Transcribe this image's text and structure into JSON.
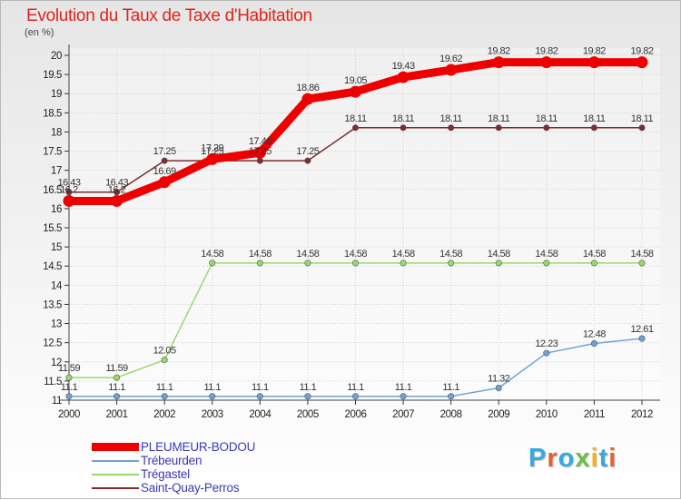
{
  "chart_data": {
    "type": "line",
    "title": "Evolution du Taux de Taxe d'Habitation",
    "ylabel": "(en %)",
    "xlabel": "",
    "x": [
      "2000",
      "2001",
      "2002",
      "2003",
      "2004",
      "2005",
      "2006",
      "2007",
      "2008",
      "2009",
      "2010",
      "2011",
      "2012"
    ],
    "ylim": [
      11,
      20
    ],
    "yticks": [
      "11",
      "11.5",
      "12",
      "12.5",
      "13",
      "13.5",
      "14",
      "14.5",
      "15",
      "15.5",
      "16",
      "16.5",
      "17",
      "17.5",
      "18",
      "18.5",
      "19",
      "19.5",
      "20"
    ],
    "grid": true,
    "legend_position": "bottom-left",
    "series": [
      {
        "name": "PLEUMEUR-BODOU",
        "color": "#ee0000",
        "values": [
          16.2,
          16.2,
          16.69,
          17.29,
          17.46,
          18.86,
          19.05,
          19.43,
          19.62,
          19.82,
          19.82,
          19.82,
          19.82
        ],
        "labels": [
          "16.2",
          "16.2",
          "16.69",
          "17.29",
          "17.46",
          "18.86",
          "19.05",
          "19.43",
          "19.62",
          "19.82",
          "19.82",
          "19.82",
          "19.82"
        ]
      },
      {
        "name": "Trébeurden",
        "color": "#6fa3d6",
        "values": [
          11.1,
          11.1,
          11.1,
          11.1,
          11.1,
          11.1,
          11.1,
          11.1,
          11.1,
          11.32,
          12.23,
          12.48,
          12.61
        ],
        "labels": [
          "11.1",
          "11.1",
          "11.1",
          "11.1",
          "11.1",
          "11.1",
          "11.1",
          "11.1",
          "11.1",
          "11.32",
          "12.23",
          "12.48",
          "12.61"
        ]
      },
      {
        "name": "Trégastel",
        "color": "#99d96a",
        "values": [
          11.59,
          11.59,
          12.05,
          14.58,
          14.58,
          14.58,
          14.58,
          14.58,
          14.58,
          14.58,
          14.58,
          14.58,
          14.58
        ],
        "labels": [
          "11.59",
          "11.59",
          "12.05",
          "14.58",
          "14.58",
          "14.58",
          "14.58",
          "14.58",
          "14.58",
          "14.58",
          "14.58",
          "14.58",
          "14.58"
        ]
      },
      {
        "name": "Saint-Quay-Perros",
        "color": "#7a2e2e",
        "values": [
          16.43,
          16.43,
          17.25,
          17.25,
          17.25,
          17.25,
          18.11,
          18.11,
          18.11,
          18.11,
          18.11,
          18.11,
          18.11
        ],
        "labels": [
          "16.43",
          "16.43",
          "17.25",
          "17.25",
          "17.25",
          "17.25",
          "18.11",
          "18.11",
          "18.11",
          "18.11",
          "18.11",
          "18.11",
          "18.11"
        ]
      }
    ]
  },
  "brand": {
    "letters": [
      "P",
      "r",
      "o",
      "x",
      "i",
      "t",
      "i"
    ],
    "colors": [
      "#3aa7de",
      "#e8612c",
      "#3aa7de",
      "#6cbe45",
      "#f2b31b",
      "#3aa7de",
      "#e8612c"
    ]
  }
}
